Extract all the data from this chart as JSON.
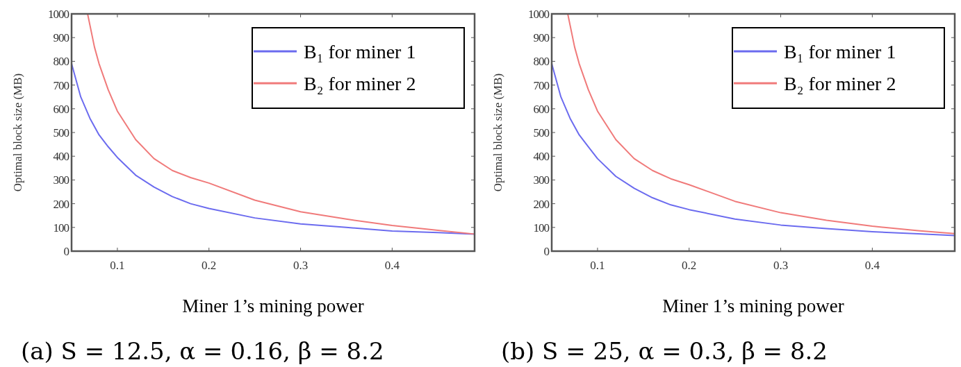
{
  "chart_data": [
    {
      "type": "line",
      "title": "(a)  S = 12.5, α = 0.16, β = 8.2",
      "xlabel": "Miner 1’s mining power",
      "ylabel": "Optimal block size (MB)",
      "xlim": [
        0.05,
        0.49
      ],
      "xticks": [
        0.1,
        0.2,
        0.3,
        0.4
      ],
      "ylim": [
        0,
        1000
      ],
      "yticks": [
        0,
        100,
        200,
        300,
        400,
        500,
        600,
        700,
        800,
        900,
        1000
      ],
      "grid": false,
      "legend": "top right",
      "line_style": "solid",
      "marker": "none",
      "series": [
        {
          "name": "B₁ for miner 1",
          "color": "#6b6bef",
          "x": [
            0.05,
            0.06,
            0.07,
            0.08,
            0.09,
            0.1,
            0.12,
            0.14,
            0.16,
            0.18,
            0.2,
            0.25,
            0.3,
            0.35,
            0.4,
            0.45,
            0.49
          ],
          "values": [
            790,
            650,
            560,
            490,
            440,
            395,
            320,
            270,
            230,
            200,
            180,
            140,
            115,
            100,
            85,
            78,
            72
          ]
        },
        {
          "name": "B₂ for miner 2",
          "color": "#f07a7a",
          "x": [
            0.0675,
            0.075,
            0.08,
            0.09,
            0.1,
            0.12,
            0.14,
            0.16,
            0.18,
            0.2,
            0.25,
            0.3,
            0.35,
            0.4,
            0.45,
            0.49
          ],
          "values": [
            1000,
            860,
            790,
            680,
            590,
            470,
            390,
            340,
            310,
            287,
            215,
            166,
            135,
            108,
            88,
            72
          ]
        }
      ]
    },
    {
      "type": "line",
      "title": "(b)  S = 25, α = 0.3, β = 8.2",
      "xlabel": "Miner 1’s mining power",
      "ylabel": "Optimal block size (MB)",
      "xlim": [
        0.05,
        0.49
      ],
      "xticks": [
        0.1,
        0.2,
        0.3,
        0.4
      ],
      "ylim": [
        0,
        1000
      ],
      "yticks": [
        0,
        100,
        200,
        300,
        400,
        500,
        600,
        700,
        800,
        900,
        1000
      ],
      "grid": false,
      "legend": "top right",
      "line_style": "solid",
      "marker": "none",
      "series": [
        {
          "name": "B₁ for miner 1",
          "color": "#6b6bef",
          "x": [
            0.05,
            0.06,
            0.07,
            0.08,
            0.09,
            0.1,
            0.12,
            0.14,
            0.16,
            0.18,
            0.2,
            0.25,
            0.3,
            0.35,
            0.4,
            0.45,
            0.49
          ],
          "values": [
            790,
            650,
            560,
            490,
            440,
            390,
            315,
            265,
            225,
            195,
            175,
            135,
            110,
            95,
            82,
            73,
            66
          ]
        },
        {
          "name": "B₂ for miner 2",
          "color": "#f07a7a",
          "x": [
            0.0675,
            0.075,
            0.08,
            0.09,
            0.1,
            0.12,
            0.14,
            0.16,
            0.18,
            0.2,
            0.25,
            0.3,
            0.35,
            0.4,
            0.45,
            0.49
          ],
          "values": [
            1000,
            860,
            790,
            680,
            590,
            470,
            390,
            340,
            305,
            280,
            210,
            162,
            130,
            105,
            86,
            74
          ]
        }
      ]
    }
  ]
}
